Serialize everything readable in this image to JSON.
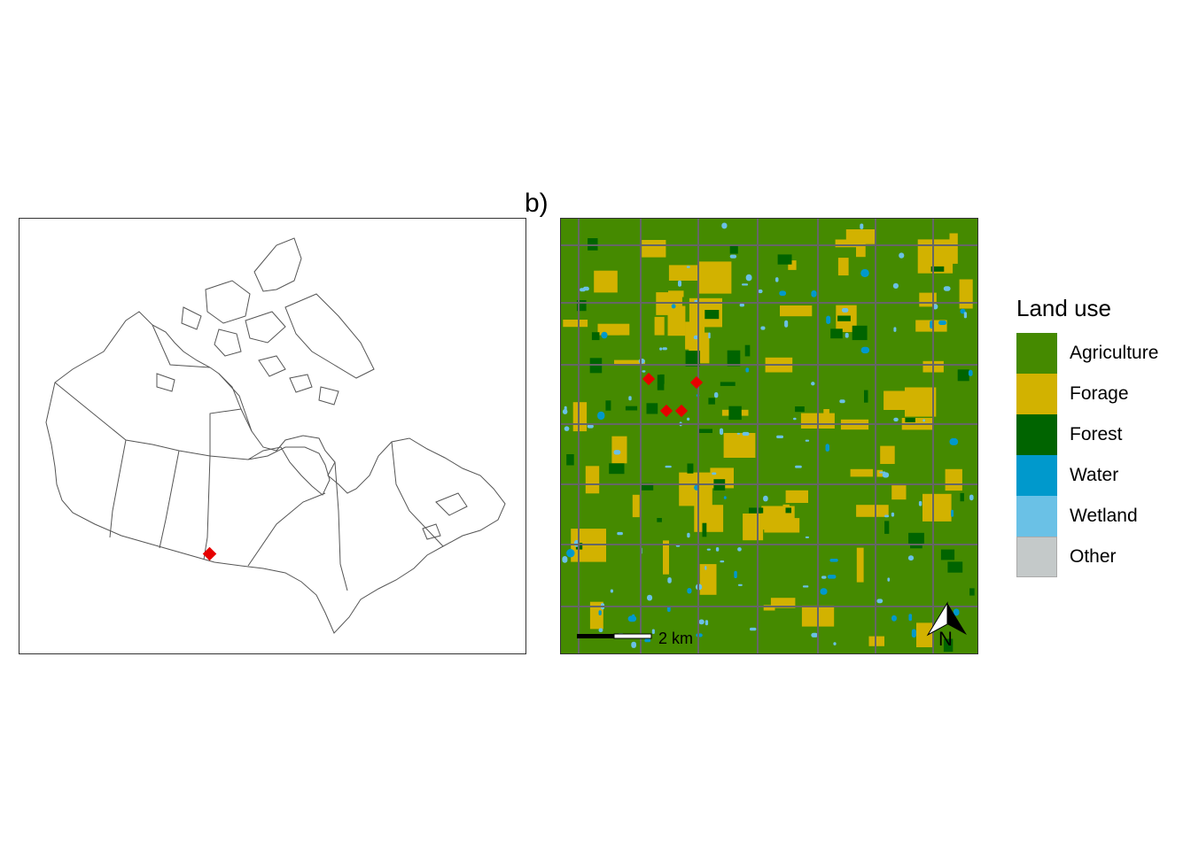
{
  "panel_b_label": "b)",
  "legend": {
    "title": "Land use",
    "items": [
      {
        "label": "Agriculture",
        "color": "#458a00"
      },
      {
        "label": "Forage",
        "color": "#d2b200"
      },
      {
        "label": "Forest",
        "color": "#006400"
      },
      {
        "label": "Water",
        "color": "#0099cc"
      },
      {
        "label": "Wetland",
        "color": "#6ac1e6"
      },
      {
        "label": "Other",
        "color": "#c4c9c9"
      }
    ]
  },
  "scale_bar": {
    "label": "2 km"
  },
  "north_arrow": {
    "label": "N"
  },
  "site_marker_color": "#e60000"
}
